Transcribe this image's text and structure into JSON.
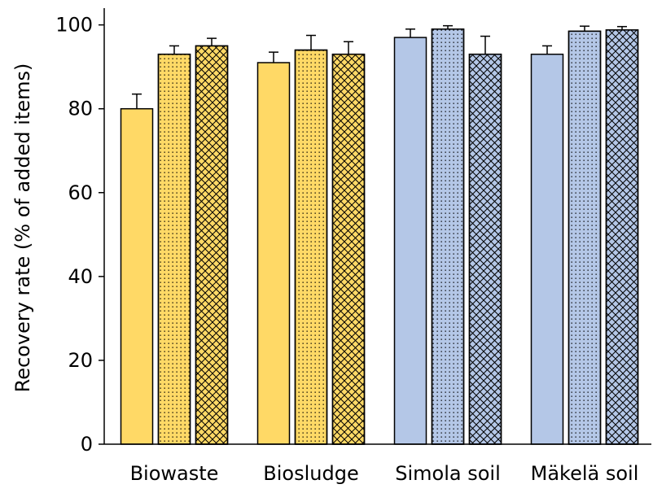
{
  "chart_data": {
    "type": "bar",
    "title": "",
    "xlabel": "",
    "ylabel": "Recovery rate (% of added items)",
    "ylim": [
      0,
      104
    ],
    "yticks": [
      0,
      20,
      40,
      60,
      80,
      100
    ],
    "grid": false,
    "categories": [
      "Biowaste",
      "Biosludge",
      "Simola soil",
      "Mäkelä soil"
    ],
    "category_colors": [
      "#FFD966",
      "#FFD966",
      "#B4C7E7",
      "#B4C7E7"
    ],
    "series": [
      {
        "pattern": "solid",
        "values": [
          80,
          91,
          97,
          93
        ],
        "errors": [
          3.5,
          2.5,
          2,
          2
        ]
      },
      {
        "pattern": "dotted",
        "values": [
          93,
          94,
          99,
          98.5
        ],
        "errors": [
          2,
          3.5,
          0.8,
          1.2
        ]
      },
      {
        "pattern": "hatched",
        "values": [
          95,
          93,
          93,
          98.8
        ],
        "errors": [
          1.8,
          3,
          4.3,
          0.8
        ]
      }
    ]
  }
}
